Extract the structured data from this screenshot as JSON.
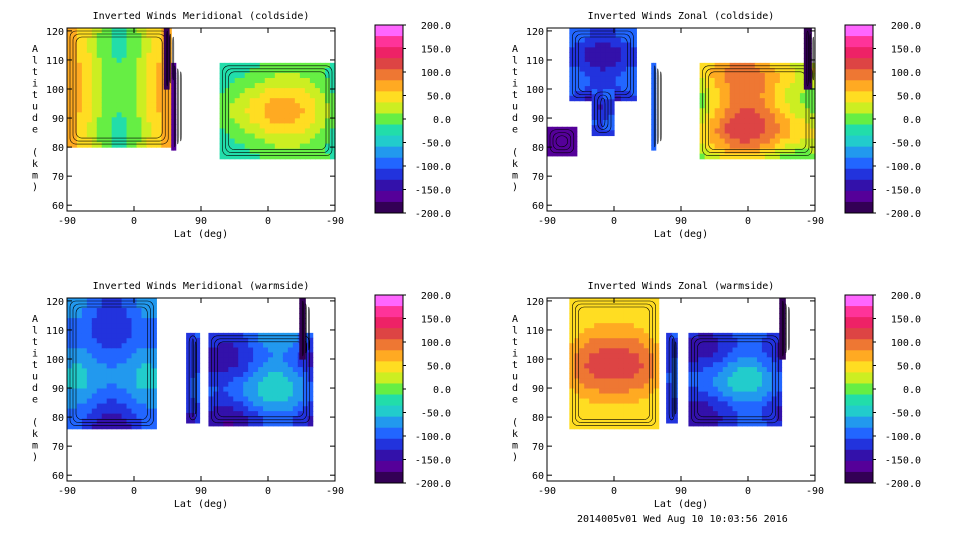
{
  "footer": "2014005v01 Wed Aug 10 10:03:56 2016",
  "colorbar": {
    "tick_labels": [
      "200.0",
      "150.0",
      "100.0",
      "50.0",
      "0.0",
      "-50.0",
      "-100.0",
      "-150.0",
      "-200.0"
    ],
    "range": [
      -200,
      200
    ],
    "colors": [
      "#ff66ff",
      "#ff3399",
      "#ee2266",
      "#dd4444",
      "#ee7733",
      "#ffaa22",
      "#ffdd22",
      "#ccee22",
      "#66ee44",
      "#22ddaa",
      "#22cccc",
      "#2299ee",
      "#2266ff",
      "#2233dd",
      "#3311aa",
      "#550099",
      "#330055"
    ]
  },
  "chart_data": [
    {
      "type": "heatmap",
      "title": "Inverted Winds Meridional (coldside)",
      "xlabel": "Lat (deg)",
      "ylabel": "Altitude (km)",
      "x_tick_labels": [
        "-90",
        "0",
        "90",
        "0",
        "-90"
      ],
      "y_tick_labels": [
        "60",
        "70",
        "80",
        "90",
        "100",
        "110",
        "120"
      ],
      "ylim": [
        58,
        121
      ],
      "blocks": [
        {
          "x": [
            -90,
            50
          ],
          "y": [
            80,
            121
          ],
          "base": 30,
          "grad": [
            5,
            45,
            -5
          ]
        },
        {
          "x": [
            50,
            56
          ],
          "y": [
            79,
            109
          ],
          "base": -170,
          "grad": [
            0,
            0,
            0
          ]
        },
        {
          "x": [
            115,
            270
          ],
          "y": [
            76,
            109
          ],
          "base": -10,
          "grad": [
            70,
            10,
            -10
          ]
        },
        {
          "x": [
            40,
            47
          ],
          "y": [
            100,
            121
          ],
          "base": -200,
          "grad": [
            0,
            0,
            0
          ]
        }
      ]
    },
    {
      "type": "heatmap",
      "title": "Inverted Winds Zonal (coldside)",
      "xlabel": "Lat (deg)",
      "ylabel": "Altitude (km)",
      "x_tick_labels": [
        "-90",
        "0",
        "90",
        "0",
        "-90"
      ],
      "y_tick_labels": [
        "60",
        "70",
        "80",
        "90",
        "100",
        "110",
        "120"
      ],
      "ylim": [
        58,
        121
      ],
      "blocks": [
        {
          "x": [
            -60,
            30
          ],
          "y": [
            96,
            121
          ],
          "base": -130,
          "grad": [
            10,
            20,
            20
          ]
        },
        {
          "x": [
            -30,
            0
          ],
          "y": [
            84,
            100
          ],
          "base": -120,
          "grad": [
            0,
            10,
            10
          ]
        },
        {
          "x": [
            -90,
            -50
          ],
          "y": [
            77,
            87
          ],
          "base": -175,
          "grad": [
            0,
            0,
            0
          ]
        },
        {
          "x": [
            50,
            56
          ],
          "y": [
            79,
            109
          ],
          "base": -100,
          "grad": [
            0,
            0,
            0
          ]
        },
        {
          "x": [
            115,
            270
          ],
          "y": [
            76,
            109
          ],
          "base": 40,
          "grad": [
            60,
            30,
            20
          ]
        },
        {
          "x": [
            255,
            265
          ],
          "y": [
            100,
            121
          ],
          "base": -200,
          "grad": [
            0,
            0,
            0
          ]
        }
      ]
    },
    {
      "type": "heatmap",
      "title": "Inverted Winds Meridional (warmside)",
      "xlabel": "Lat (deg)",
      "ylabel": "Altitude (km)",
      "x_tick_labels": [
        "-90",
        "0",
        "90",
        "0",
        "-90"
      ],
      "y_tick_labels": [
        "60",
        "70",
        "80",
        "90",
        "100",
        "110",
        "120"
      ],
      "ylim": [
        58,
        121
      ],
      "blocks": [
        {
          "x": [
            -90,
            30
          ],
          "y": [
            76,
            121
          ],
          "base": -110,
          "grad": [
            40,
            30,
            20
          ]
        },
        {
          "x": [
            70,
            88
          ],
          "y": [
            78,
            109
          ],
          "base": -130,
          "grad": [
            20,
            10,
            10
          ]
        },
        {
          "x": [
            100,
            240
          ],
          "y": [
            77,
            109
          ],
          "base": -115,
          "grad": [
            30,
            30,
            20
          ]
        },
        {
          "x": [
            222,
            230
          ],
          "y": [
            100,
            121
          ],
          "base": -200,
          "grad": [
            0,
            0,
            0
          ]
        }
      ]
    },
    {
      "type": "heatmap",
      "title": "Inverted Winds Zonal (warmside)",
      "xlabel": "Lat (deg)",
      "ylabel": "Altitude (km)",
      "x_tick_labels": [
        "-90",
        "0",
        "90",
        "0",
        "-90"
      ],
      "y_tick_labels": [
        "60",
        "70",
        "80",
        "90",
        "100",
        "110",
        "120"
      ],
      "ylim": [
        58,
        121
      ],
      "blocks": [
        {
          "x": [
            -60,
            60
          ],
          "y": [
            76,
            121
          ],
          "base": 50,
          "grad": [
            70,
            10,
            20
          ]
        },
        {
          "x": [
            70,
            85
          ],
          "y": [
            78,
            109
          ],
          "base": -120,
          "grad": [
            10,
            10,
            10
          ]
        },
        {
          "x": [
            100,
            225
          ],
          "y": [
            77,
            109
          ],
          "base": -120,
          "grad": [
            40,
            20,
            20
          ]
        },
        {
          "x": [
            222,
            230
          ],
          "y": [
            100,
            121
          ],
          "base": -200,
          "grad": [
            0,
            0,
            0
          ]
        }
      ]
    }
  ]
}
